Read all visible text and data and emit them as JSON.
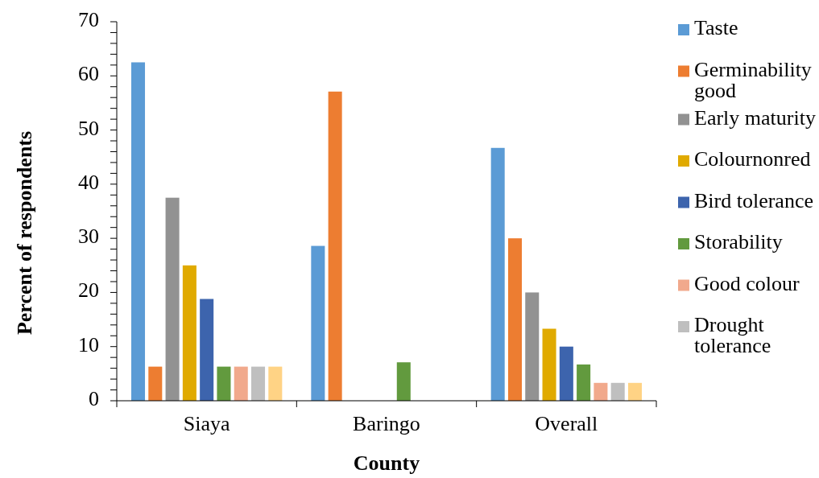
{
  "chart_data": {
    "type": "bar",
    "xlabel": "County",
    "ylabel": "Percent of respondents",
    "categories": [
      "Siaya",
      "Baringo",
      "Overall"
    ],
    "series": [
      {
        "name": "Taste",
        "color": "#5b9bd5",
        "values": [
          62.5,
          28.6,
          46.7
        ]
      },
      {
        "name": "Germinability good",
        "color": "#ed7d31",
        "values": [
          6.3,
          57.1,
          30
        ]
      },
      {
        "name": "Early maturity",
        "color": "#929292",
        "values": [
          37.5,
          0,
          20
        ]
      },
      {
        "name": "Colournonred",
        "color": "#e0aa00",
        "values": [
          25,
          0,
          13.3
        ]
      },
      {
        "name": "Bird tolerance",
        "color": "#3d64ad",
        "values": [
          18.8,
          0,
          10
        ]
      },
      {
        "name": "Storability",
        "color": "#629a3e",
        "values": [
          6.3,
          7.1,
          6.7
        ]
      },
      {
        "name": "Good colour",
        "color": "#f1a98c",
        "values": [
          6.3,
          0,
          3.3
        ]
      },
      {
        "name": "Drought tolerance",
        "color": "#bfbfbf",
        "values": [
          6.3,
          0,
          3.3
        ]
      },
      {
        "color": "#ffd385",
        "values": [
          6.3,
          0,
          3.3
        ]
      }
    ],
    "ylim": [
      0,
      70
    ],
    "yticks": [
      0,
      {
        "value": 2,
        "label": null
      },
      {
        "value": 4,
        "label": null
      },
      {
        "value": 6,
        "label": null
      },
      {
        "value": 8,
        "label": null
      },
      10,
      {
        "value": 12,
        "label": null
      },
      {
        "value": 14,
        "label": null
      },
      {
        "value": 16,
        "label": null
      },
      {
        "value": 18,
        "label": null
      },
      20,
      {
        "value": 22,
        "label": null
      },
      {
        "value": 24,
        "label": null
      },
      {
        "value": 26,
        "label": null
      },
      {
        "value": 28,
        "label": null
      },
      30,
      {
        "value": 32,
        "label": null
      },
      {
        "value": 34,
        "label": null
      },
      {
        "value": 36,
        "label": null
      },
      {
        "value": 38,
        "label": null
      },
      40,
      {
        "value": 42,
        "label": null
      },
      {
        "value": 44,
        "label": null
      },
      {
        "value": 46,
        "label": null
      },
      {
        "value": 48,
        "label": null
      },
      50,
      {
        "value": 52,
        "label": null
      },
      {
        "value": 54,
        "label": null
      },
      {
        "value": 56,
        "label": null
      },
      {
        "value": 58,
        "label": null
      },
      60,
      {
        "value": 62,
        "label": null
      },
      {
        "value": 64,
        "label": null
      },
      {
        "value": 66,
        "label": null
      },
      {
        "value": 68,
        "label": null
      },
      70
    ],
    "legend": "right"
  }
}
